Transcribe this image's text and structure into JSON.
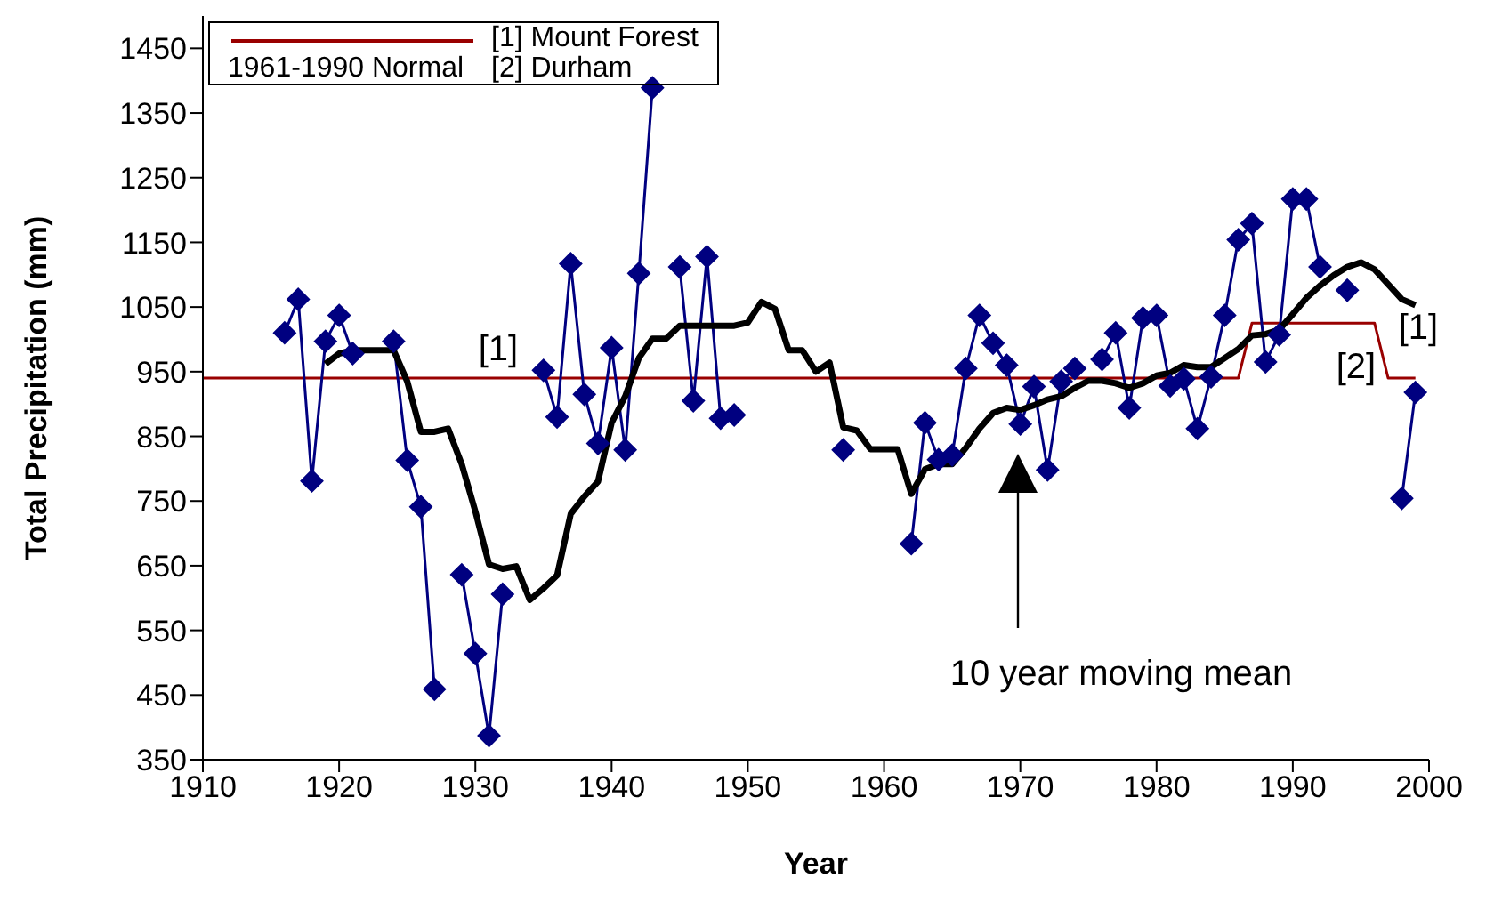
{
  "chart_data": {
    "type": "line",
    "xlabel": "Year",
    "ylabel": "Total Precipitation (mm)",
    "xlim": [
      1910,
      2000
    ],
    "xticks": [
      1910,
      1920,
      1930,
      1940,
      1950,
      1960,
      1970,
      1980,
      1990,
      2000
    ],
    "ylim": [
      350,
      1500
    ],
    "yticks": [
      350,
      450,
      550,
      650,
      750,
      850,
      950,
      1050,
      1150,
      1250,
      1350,
      1450
    ],
    "grid": false,
    "legend": "top left",
    "series": [
      {
        "name": "1961-1990 Normal",
        "color": "#990000",
        "marker": "none",
        "x": [
          1910,
          1986,
          1987,
          1996,
          1997,
          1999
        ],
        "values": [
          940,
          940,
          1025,
          1025,
          940,
          940
        ]
      },
      {
        "color": "#000080",
        "marker": "diamond",
        "x": [
          1916,
          1917,
          1918,
          1919,
          1920,
          1921,
          1922,
          1923,
          1924,
          1925,
          1926,
          1927,
          1928,
          1929,
          1930,
          1931,
          1932,
          1933,
          1934,
          1935,
          1936,
          1937,
          1938,
          1939,
          1940,
          1941,
          1942,
          1943,
          1944,
          1945,
          1946,
          1947,
          1948,
          1949,
          1950,
          1951,
          1952,
          1953,
          1954,
          1955,
          1956,
          1957,
          1958,
          1959,
          1960,
          1961,
          1962,
          1963,
          1964,
          1965,
          1966,
          1967,
          1968,
          1969,
          1970,
          1971,
          1972,
          1973,
          1974,
          1975,
          1976,
          1977,
          1978,
          1979,
          1980,
          1981,
          1982,
          1983,
          1984,
          1985,
          1986,
          1987,
          1988,
          1989,
          1990,
          1991,
          1992,
          1993,
          1994,
          1995,
          1996,
          1997,
          1998,
          1999
        ],
        "values": [
          1010,
          1062,
          781,
          997,
          1037,
          978,
          null,
          null,
          997,
          813,
          741,
          459,
          null,
          636,
          514,
          387,
          606,
          null,
          null,
          952,
          880,
          1117,
          915,
          839,
          987,
          829,
          1102,
          1389,
          null,
          1112,
          905,
          1128,
          878,
          883,
          null,
          null,
          null,
          null,
          null,
          null,
          null,
          829,
          null,
          null,
          null,
          null,
          684,
          871,
          814,
          821,
          955,
          1037,
          994,
          960,
          869,
          927,
          798,
          935,
          955,
          null,
          969,
          1010,
          894,
          1033,
          1037,
          928,
          939,
          862,
          942,
          1037,
          1154,
          1179,
          965,
          1007,
          1217,
          1217,
          1112,
          null,
          1076,
          null,
          null,
          null,
          754,
          918
        ]
      },
      {
        "color": "#000000",
        "marker": "none",
        "x": [
          1919,
          1920,
          1921,
          1922,
          1923,
          1924,
          1925,
          1926,
          1927,
          1928,
          1929,
          1930,
          1931,
          1932,
          1933,
          1934,
          1935,
          1936,
          1937,
          1938,
          1939,
          1940,
          1941,
          1942,
          1943,
          1944,
          1945,
          1946,
          1947,
          1948,
          1949,
          1950,
          1951,
          1952,
          1953,
          1954,
          1955,
          1956,
          1957,
          1958,
          1959,
          1960,
          1961,
          1962,
          1963,
          1964,
          1965,
          1966,
          1967,
          1968,
          1969,
          1970,
          1971,
          1972,
          1973,
          1974,
          1975,
          1976,
          1977,
          1978,
          1979,
          1980,
          1981,
          1982,
          1983,
          1984,
          1985,
          1986,
          1987,
          1988,
          1989,
          1990,
          1991,
          1992,
          1993,
          1994,
          1995,
          1996,
          1997,
          1998,
          1999
        ],
        "values": [
          962,
          978,
          983,
          983,
          983,
          983,
          935,
          857,
          857,
          862,
          807,
          734,
          652,
          645,
          649,
          597,
          615,
          635,
          730,
          757,
          780,
          871,
          912,
          971,
          1001,
          1001,
          1021,
          1021,
          1021,
          1021,
          1021,
          1026,
          1058,
          1047,
          983,
          983,
          950,
          964,
          864,
          859,
          830,
          830,
          830,
          761,
          799,
          807,
          807,
          832,
          862,
          886,
          894,
          891,
          898,
          907,
          912,
          925,
          936,
          936,
          932,
          925,
          932,
          944,
          948,
          960,
          957,
          957,
          971,
          985,
          1006,
          1008,
          1015,
          1039,
          1064,
          1083,
          1099,
          1112,
          1119,
          1108,
          1085,
          1062,
          1053
        ]
      }
    ],
    "annotations": [
      "[1]  Mount Forest",
      "[2]  Durham",
      "[1]",
      "[2]",
      "[1]",
      "10 year moving mean"
    ]
  }
}
